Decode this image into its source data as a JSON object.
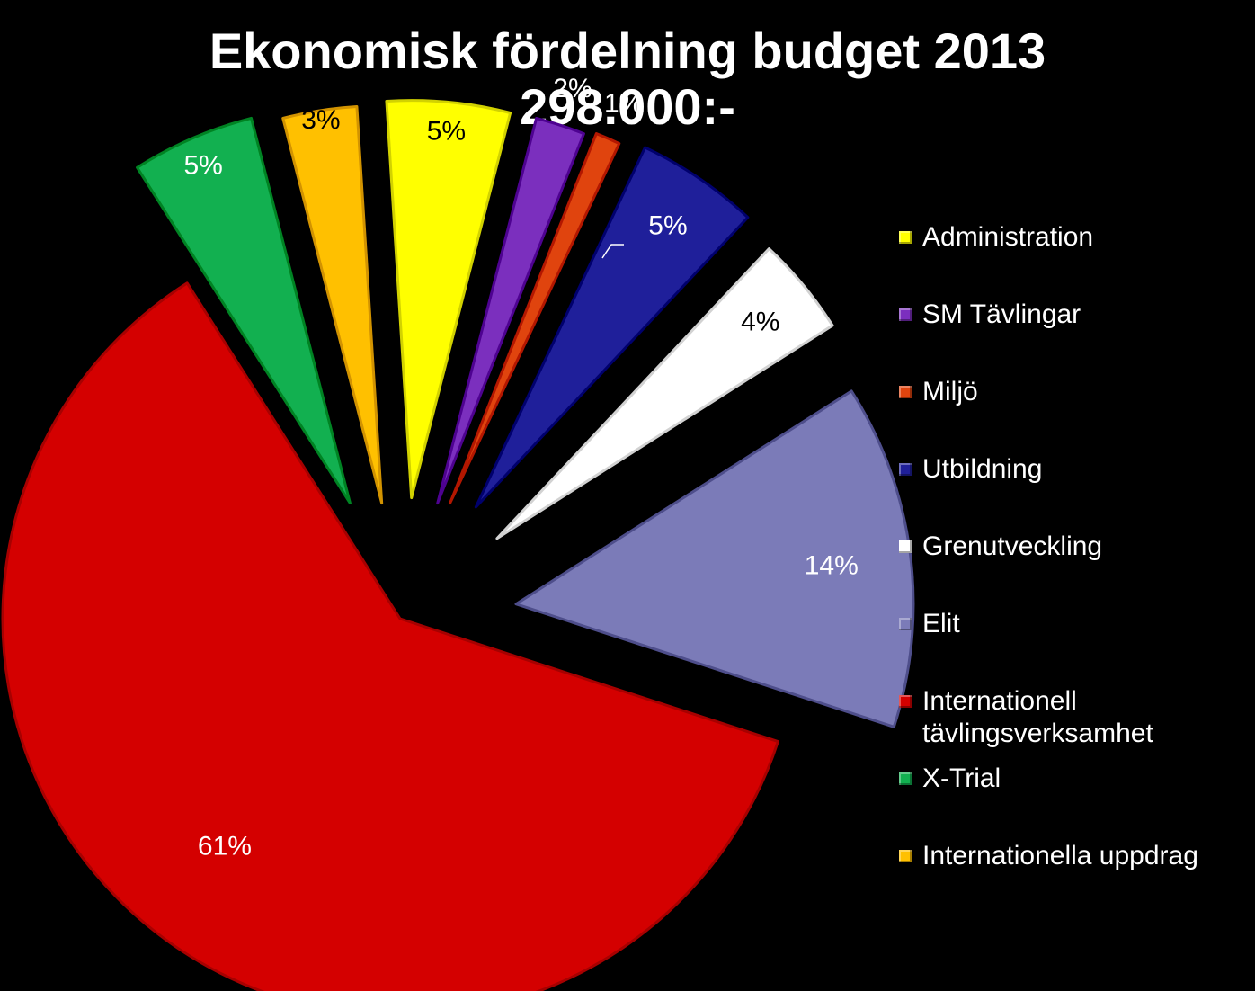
{
  "title": {
    "line1": "Ekonomisk fördelning budget 2013",
    "line2": "298.000:-"
  },
  "chart_data": {
    "type": "pie",
    "title": "Ekonomisk fördelning budget 2013 298.000:-",
    "legend_position": "right",
    "exploded": true,
    "categories": [
      "Administration",
      "SM Tävlingar",
      "Miljö",
      "Utbildning",
      "Grenutveckling",
      "Elit",
      "Internationell tävlingsverksamhet",
      "X-Trial",
      "Internationella uppdrag"
    ],
    "values": [
      5,
      2,
      1,
      5,
      4,
      14,
      61,
      5,
      3
    ],
    "labels": [
      "5%",
      "2%",
      "1%",
      "5%",
      "4%",
      "14%",
      "61%",
      "5%",
      "3%"
    ],
    "colors": [
      "#ffff00",
      "#7b2fbe",
      "#e0440e",
      "#1f1f9a",
      "#ffffff",
      "#7b7bb8",
      "#d40000",
      "#12b050",
      "#ffc000"
    ],
    "label_colors": [
      "#000000",
      "#ffffff",
      "#ffffff",
      "#ffffff",
      "#000000",
      "#ffffff",
      "#ffffff",
      "#ffffff",
      "#000000"
    ]
  },
  "legend": {
    "items": [
      {
        "label": "Administration",
        "color": "#ffff00"
      },
      {
        "label": "SM Tävlingar",
        "color": "#7b2fbe"
      },
      {
        "label": "Miljö",
        "color": "#e0440e"
      },
      {
        "label": "Utbildning",
        "color": "#1f1f9a"
      },
      {
        "label": "Grenutveckling",
        "color": "#ffffff"
      },
      {
        "label": "Elit",
        "color": "#7b7bb8"
      },
      {
        "label": "Internationell tävlingsverksamhet",
        "color": "#d40000"
      },
      {
        "label": "X-Trial",
        "color": "#12b050"
      },
      {
        "label": "Internationella uppdrag",
        "color": "#ffc000"
      }
    ]
  }
}
